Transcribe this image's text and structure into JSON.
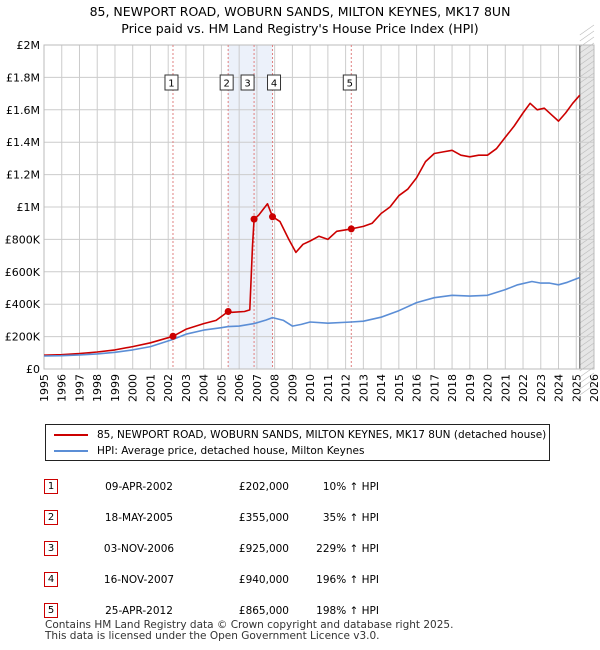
{
  "header": {
    "title_line1": "85, NEWPORT ROAD, WOBURN SANDS, MILTON KEYNES, MK17 8UN",
    "title_line2": "Price paid vs. HM Land Registry's House Price Index (HPI)"
  },
  "colors": {
    "property_line": "#cc0000",
    "hpi_line": "#5b8ed6",
    "shade": "#dce6f5",
    "grid": "#cccccc",
    "sale_marker_line": "#e08080"
  },
  "chart_data": {
    "type": "line",
    "title": "Price paid vs. HM Land Registry's House Price Index (HPI)",
    "xlabel": "",
    "ylabel": "",
    "xlim": [
      1995,
      2026
    ],
    "ylim": [
      0,
      2000000
    ],
    "grid": true,
    "y_ticks": [
      {
        "value": 0,
        "label": "£0"
      },
      {
        "value": 200000,
        "label": "£200K"
      },
      {
        "value": 400000,
        "label": "£400K"
      },
      {
        "value": 600000,
        "label": "£600K"
      },
      {
        "value": 800000,
        "label": "£800K"
      },
      {
        "value": 1000000,
        "label": "£1M"
      },
      {
        "value": 1200000,
        "label": "£1.2M"
      },
      {
        "value": 1400000,
        "label": "£1.4M"
      },
      {
        "value": 1600000,
        "label": "£1.6M"
      },
      {
        "value": 1800000,
        "label": "£1.8M"
      },
      {
        "value": 2000000,
        "label": "£2M"
      }
    ],
    "x_ticks": [
      "1995",
      "1996",
      "1997",
      "1998",
      "1999",
      "2000",
      "2001",
      "2002",
      "2003",
      "2004",
      "2005",
      "2006",
      "2007",
      "2008",
      "2009",
      "2010",
      "2011",
      "2012",
      "2013",
      "2014",
      "2015",
      "2016",
      "2017",
      "2018",
      "2019",
      "2020",
      "2021",
      "2022",
      "2023",
      "2024",
      "2025",
      "2026"
    ],
    "forecast_start": 2025.2,
    "series": [
      {
        "name": "85, NEWPORT ROAD, WOBURN SANDS, MILTON KEYNES, MK17 8UN (detached house)",
        "color": "#cc0000",
        "points": [
          [
            1995.0,
            85000
          ],
          [
            1996.0,
            88000
          ],
          [
            1997.0,
            95000
          ],
          [
            1998.0,
            105000
          ],
          [
            1999.0,
            118000
          ],
          [
            2000.0,
            138000
          ],
          [
            2001.0,
            162000
          ],
          [
            2002.27,
            202000
          ],
          [
            2003.0,
            245000
          ],
          [
            2004.0,
            280000
          ],
          [
            2004.7,
            300000
          ],
          [
            2005.38,
            355000
          ],
          [
            2005.6,
            350000
          ],
          [
            2006.3,
            355000
          ],
          [
            2006.6,
            365000
          ],
          [
            2006.75,
            760000
          ],
          [
            2006.84,
            925000
          ],
          [
            2007.1,
            950000
          ],
          [
            2007.6,
            1020000
          ],
          [
            2007.88,
            940000
          ],
          [
            2008.3,
            910000
          ],
          [
            2008.8,
            800000
          ],
          [
            2009.2,
            720000
          ],
          [
            2009.6,
            770000
          ],
          [
            2010.0,
            790000
          ],
          [
            2010.5,
            820000
          ],
          [
            2011.0,
            800000
          ],
          [
            2011.5,
            850000
          ],
          [
            2012.32,
            865000
          ],
          [
            2013.0,
            880000
          ],
          [
            2013.5,
            900000
          ],
          [
            2014.0,
            960000
          ],
          [
            2014.5,
            1000000
          ],
          [
            2015.0,
            1070000
          ],
          [
            2015.5,
            1110000
          ],
          [
            2016.0,
            1180000
          ],
          [
            2016.5,
            1280000
          ],
          [
            2017.0,
            1330000
          ],
          [
            2017.5,
            1340000
          ],
          [
            2018.0,
            1350000
          ],
          [
            2018.5,
            1320000
          ],
          [
            2019.0,
            1310000
          ],
          [
            2019.5,
            1320000
          ],
          [
            2020.0,
            1320000
          ],
          [
            2020.5,
            1360000
          ],
          [
            2021.0,
            1430000
          ],
          [
            2021.5,
            1500000
          ],
          [
            2022.0,
            1580000
          ],
          [
            2022.4,
            1640000
          ],
          [
            2022.8,
            1600000
          ],
          [
            2023.2,
            1610000
          ],
          [
            2023.6,
            1570000
          ],
          [
            2024.0,
            1530000
          ],
          [
            2024.4,
            1580000
          ],
          [
            2024.8,
            1640000
          ],
          [
            2025.2,
            1690000
          ]
        ]
      },
      {
        "name": "HPI: Average price, detached house, Milton Keynes",
        "color": "#5b8ed6",
        "points": [
          [
            1995.0,
            80000
          ],
          [
            1996.0,
            82000
          ],
          [
            1997.0,
            87000
          ],
          [
            1998.0,
            93000
          ],
          [
            1999.0,
            103000
          ],
          [
            2000.0,
            118000
          ],
          [
            2001.0,
            138000
          ],
          [
            2002.27,
            183000
          ],
          [
            2003.0,
            215000
          ],
          [
            2004.0,
            240000
          ],
          [
            2005.0,
            255000
          ],
          [
            2005.38,
            262000
          ],
          [
            2006.0,
            265000
          ],
          [
            2006.84,
            280000
          ],
          [
            2007.5,
            302000
          ],
          [
            2007.88,
            317000
          ],
          [
            2008.5,
            300000
          ],
          [
            2009.0,
            265000
          ],
          [
            2009.5,
            275000
          ],
          [
            2010.0,
            290000
          ],
          [
            2011.0,
            283000
          ],
          [
            2012.32,
            290000
          ],
          [
            2013.0,
            295000
          ],
          [
            2014.0,
            320000
          ],
          [
            2015.0,
            360000
          ],
          [
            2016.0,
            410000
          ],
          [
            2017.0,
            440000
          ],
          [
            2018.0,
            455000
          ],
          [
            2019.0,
            450000
          ],
          [
            2020.0,
            455000
          ],
          [
            2021.0,
            490000
          ],
          [
            2021.7,
            520000
          ],
          [
            2022.5,
            540000
          ],
          [
            2023.0,
            530000
          ],
          [
            2023.5,
            530000
          ],
          [
            2024.0,
            520000
          ],
          [
            2024.5,
            535000
          ],
          [
            2025.2,
            565000
          ]
        ]
      }
    ],
    "sales": [
      {
        "num": "1",
        "year": 2002.27,
        "value": 202000
      },
      {
        "num": "2",
        "year": 2005.38,
        "value": 355000
      },
      {
        "num": "3",
        "year": 2006.84,
        "value": 925000
      },
      {
        "num": "4",
        "year": 2007.88,
        "value": 940000
      },
      {
        "num": "5",
        "year": 2012.32,
        "value": 865000
      }
    ]
  },
  "legend": {
    "property_label": "85, NEWPORT ROAD, WOBURN SANDS, MILTON KEYNES, MK17 8UN (detached house)",
    "hpi_label": "HPI: Average price, detached house, Milton Keynes"
  },
  "sales_table": [
    {
      "num": "1",
      "date": "09-APR-2002",
      "price": "£202,000",
      "hpi": "10% ↑ HPI"
    },
    {
      "num": "2",
      "date": "18-MAY-2005",
      "price": "£355,000",
      "hpi": "35% ↑ HPI"
    },
    {
      "num": "3",
      "date": "03-NOV-2006",
      "price": "£925,000",
      "hpi": "229% ↑ HPI"
    },
    {
      "num": "4",
      "date": "16-NOV-2007",
      "price": "£940,000",
      "hpi": "196% ↑ HPI"
    },
    {
      "num": "5",
      "date": "25-APR-2012",
      "price": "£865,000",
      "hpi": "198% ↑ HPI"
    }
  ],
  "footer": {
    "line1": "Contains HM Land Registry data © Crown copyright and database right 2025.",
    "line2": "This data is licensed under the Open Government Licence v3.0."
  }
}
